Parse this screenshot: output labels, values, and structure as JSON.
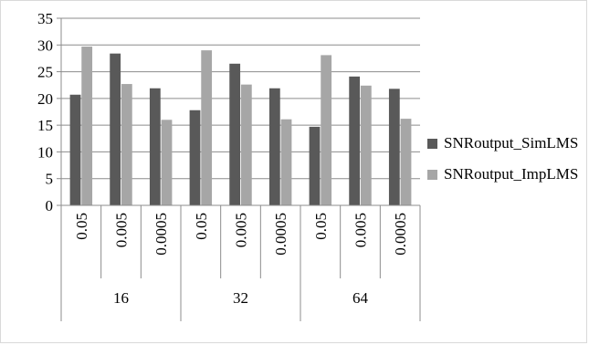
{
  "chart_data": {
    "type": "bar",
    "title": "",
    "xlabel": "",
    "ylabel": "",
    "ylim": [
      0,
      35
    ],
    "yticks": [
      0,
      5,
      10,
      15,
      20,
      25,
      30,
      35
    ],
    "grid": true,
    "legend_position": "right",
    "groups": [
      {
        "label": "16",
        "categories": [
          "0.05",
          "0.005",
          "0.0005"
        ]
      },
      {
        "label": "32",
        "categories": [
          "0.05",
          "0.005",
          "0.0005"
        ]
      },
      {
        "label": "64",
        "categories": [
          "0.05",
          "0.005",
          "0.0005"
        ]
      }
    ],
    "series": [
      {
        "name": "SNRoutput_SimLMS",
        "color": "#595959",
        "values": [
          20.7,
          28.4,
          21.9,
          17.8,
          26.5,
          21.9,
          14.7,
          24.1,
          21.8
        ]
      },
      {
        "name": "SNRoutput_ImpLMS",
        "color": "#a6a6a6",
        "values": [
          29.7,
          22.7,
          16.0,
          29.0,
          22.6,
          16.1,
          28.1,
          22.4,
          16.2
        ]
      }
    ]
  }
}
